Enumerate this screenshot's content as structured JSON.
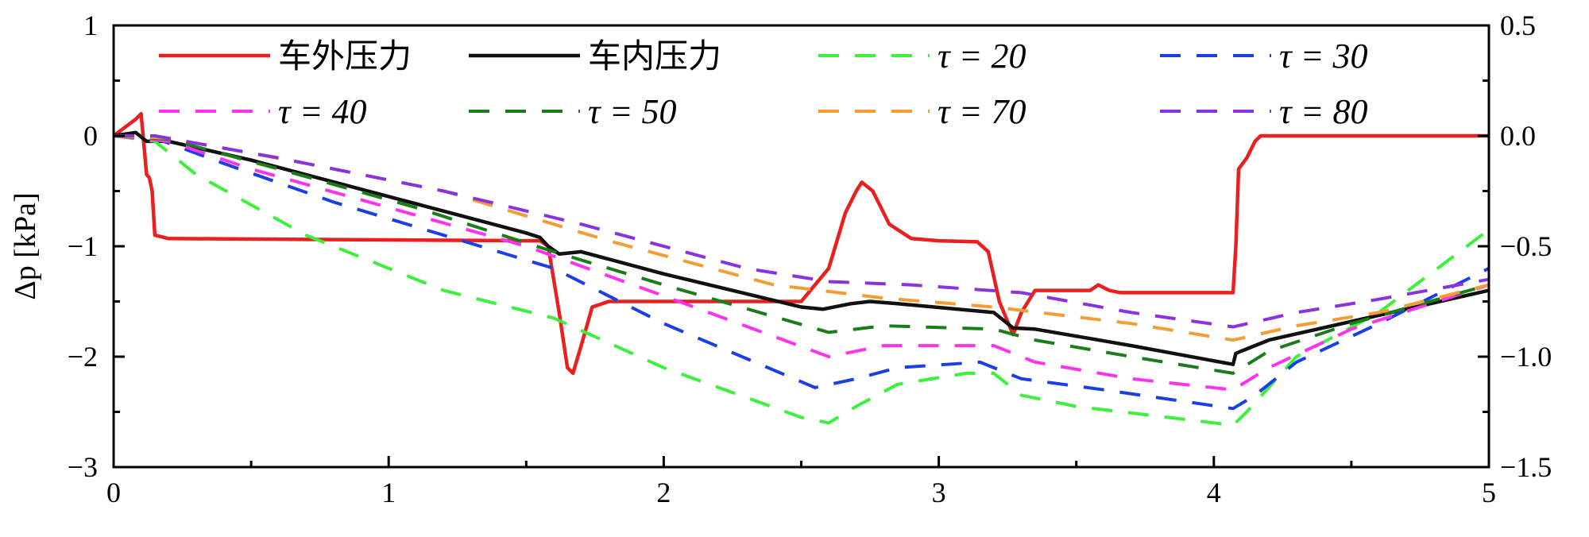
{
  "chart_data": {
    "type": "line",
    "title": "",
    "xlabel": "",
    "ylabel": "Δp [kPa]",
    "xlim": [
      0,
      5
    ],
    "ylim": [
      -3,
      1
    ],
    "y2lim": [
      -1.5,
      0.5
    ],
    "x_ticks": [
      "0",
      "1",
      "2",
      "3",
      "4",
      "5"
    ],
    "y_ticks": [
      "1",
      "0",
      "−1",
      "−2",
      "−3"
    ],
    "y2_ticks": [
      "0.5",
      "0.0",
      "−0.5",
      "−1.0",
      "−1.5"
    ],
    "grid": false,
    "legend_position": "top",
    "series": [
      {
        "name": "车外压力",
        "color": "#e8201f",
        "dash": "solid",
        "points": [
          [
            0,
            0
          ],
          [
            0.08,
            0.15
          ],
          [
            0.1,
            0.2
          ],
          [
            0.12,
            -0.35
          ],
          [
            0.13,
            -0.38
          ],
          [
            0.14,
            -0.5
          ],
          [
            0.15,
            -0.9
          ],
          [
            0.2,
            -0.93
          ],
          [
            1.5,
            -0.95
          ],
          [
            1.55,
            -0.95
          ],
          [
            1.58,
            -1.0
          ],
          [
            1.62,
            -1.6
          ],
          [
            1.65,
            -2.1
          ],
          [
            1.67,
            -2.15
          ],
          [
            1.7,
            -1.9
          ],
          [
            1.74,
            -1.55
          ],
          [
            1.8,
            -1.5
          ],
          [
            2.5,
            -1.5
          ],
          [
            2.6,
            -1.2
          ],
          [
            2.66,
            -0.7
          ],
          [
            2.7,
            -0.5
          ],
          [
            2.72,
            -0.42
          ],
          [
            2.76,
            -0.5
          ],
          [
            2.82,
            -0.8
          ],
          [
            2.9,
            -0.93
          ],
          [
            3.0,
            -0.95
          ],
          [
            3.14,
            -0.96
          ],
          [
            3.18,
            -1.05
          ],
          [
            3.22,
            -1.5
          ],
          [
            3.27,
            -1.8
          ],
          [
            3.3,
            -1.6
          ],
          [
            3.35,
            -1.4
          ],
          [
            3.55,
            -1.4
          ],
          [
            3.58,
            -1.35
          ],
          [
            3.62,
            -1.4
          ],
          [
            3.66,
            -1.42
          ],
          [
            4.07,
            -1.42
          ],
          [
            4.08,
            -1.0
          ],
          [
            4.09,
            -0.3
          ],
          [
            4.12,
            -0.2
          ],
          [
            4.15,
            -0.05
          ],
          [
            4.17,
            0
          ],
          [
            5,
            0
          ]
        ]
      },
      {
        "name": "车内压力",
        "color": "#111111",
        "dash": "solid",
        "points": [
          [
            0,
            0
          ],
          [
            0.08,
            0.03
          ],
          [
            0.12,
            -0.05
          ],
          [
            0.2,
            -0.05
          ],
          [
            0.5,
            -0.22
          ],
          [
            1.0,
            -0.55
          ],
          [
            1.5,
            -0.88
          ],
          [
            1.55,
            -0.92
          ],
          [
            1.58,
            -1.0
          ],
          [
            1.62,
            -1.07
          ],
          [
            1.7,
            -1.05
          ],
          [
            2.0,
            -1.25
          ],
          [
            2.5,
            -1.55
          ],
          [
            2.58,
            -1.57
          ],
          [
            2.68,
            -1.52
          ],
          [
            2.75,
            -1.5
          ],
          [
            2.85,
            -1.52
          ],
          [
            3.2,
            -1.6
          ],
          [
            3.27,
            -1.74
          ],
          [
            3.35,
            -1.75
          ],
          [
            3.7,
            -1.9
          ],
          [
            4.07,
            -2.07
          ],
          [
            4.08,
            -1.97
          ],
          [
            4.1,
            -1.95
          ],
          [
            4.2,
            -1.85
          ],
          [
            5,
            -1.4
          ]
        ]
      },
      {
        "name": "τ = 20",
        "color": "#3cf03c",
        "dash": "dashed",
        "points": [
          [
            0,
            0
          ],
          [
            0.15,
            -0.05
          ],
          [
            0.3,
            -0.35
          ],
          [
            0.7,
            -0.9
          ],
          [
            1.2,
            -1.4
          ],
          [
            1.6,
            -1.65
          ],
          [
            2.0,
            -2.1
          ],
          [
            2.5,
            -2.55
          ],
          [
            2.6,
            -2.6
          ],
          [
            2.7,
            -2.45
          ],
          [
            2.85,
            -2.25
          ],
          [
            3.1,
            -2.15
          ],
          [
            3.2,
            -2.15
          ],
          [
            3.3,
            -2.35
          ],
          [
            3.5,
            -2.45
          ],
          [
            4.0,
            -2.6
          ],
          [
            4.07,
            -2.62
          ],
          [
            4.12,
            -2.5
          ],
          [
            4.3,
            -2.0
          ],
          [
            4.6,
            -1.6
          ],
          [
            5,
            -0.85
          ]
        ]
      },
      {
        "name": "τ = 30",
        "color": "#1a3fe6",
        "dash": "dashed",
        "points": [
          [
            0,
            0
          ],
          [
            0.15,
            -0.02
          ],
          [
            0.4,
            -0.25
          ],
          [
            0.8,
            -0.6
          ],
          [
            1.2,
            -0.9
          ],
          [
            1.6,
            -1.2
          ],
          [
            2.0,
            -1.7
          ],
          [
            2.55,
            -2.28
          ],
          [
            2.7,
            -2.2
          ],
          [
            2.85,
            -2.1
          ],
          [
            3.15,
            -2.05
          ],
          [
            3.3,
            -2.2
          ],
          [
            3.6,
            -2.3
          ],
          [
            4.07,
            -2.47
          ],
          [
            4.15,
            -2.35
          ],
          [
            4.3,
            -2.05
          ],
          [
            4.6,
            -1.7
          ],
          [
            5,
            -1.2
          ]
        ]
      },
      {
        "name": "τ = 40",
        "color": "#ff33ee",
        "dash": "dashed",
        "points": [
          [
            0,
            0
          ],
          [
            0.2,
            -0.05
          ],
          [
            0.5,
            -0.3
          ],
          [
            1.0,
            -0.65
          ],
          [
            1.5,
            -1.0
          ],
          [
            2.0,
            -1.45
          ],
          [
            2.6,
            -2.0
          ],
          [
            2.8,
            -1.9
          ],
          [
            3.2,
            -1.9
          ],
          [
            3.35,
            -2.05
          ],
          [
            3.7,
            -2.2
          ],
          [
            4.07,
            -2.3
          ],
          [
            4.2,
            -2.1
          ],
          [
            4.5,
            -1.75
          ],
          [
            5,
            -1.35
          ]
        ]
      },
      {
        "name": "τ = 50",
        "color": "#1a7d1a",
        "dash": "dashed",
        "points": [
          [
            0,
            0
          ],
          [
            0.2,
            -0.03
          ],
          [
            0.6,
            -0.3
          ],
          [
            1.1,
            -0.65
          ],
          [
            1.6,
            -1.05
          ],
          [
            2.0,
            -1.35
          ],
          [
            2.6,
            -1.78
          ],
          [
            2.8,
            -1.72
          ],
          [
            3.2,
            -1.75
          ],
          [
            3.35,
            -1.85
          ],
          [
            3.7,
            -2.0
          ],
          [
            4.07,
            -2.15
          ],
          [
            4.2,
            -1.95
          ],
          [
            4.5,
            -1.7
          ],
          [
            5,
            -1.35
          ]
        ]
      },
      {
        "name": "τ = 70",
        "color": "#f59d35",
        "dash": "dashed",
        "points": [
          [
            0,
            0
          ],
          [
            0.2,
            -0.02
          ],
          [
            0.7,
            -0.25
          ],
          [
            1.2,
            -0.5
          ],
          [
            1.8,
            -0.95
          ],
          [
            2.4,
            -1.35
          ],
          [
            2.8,
            -1.47
          ],
          [
            3.2,
            -1.55
          ],
          [
            3.7,
            -1.7
          ],
          [
            4.07,
            -1.85
          ],
          [
            4.3,
            -1.72
          ],
          [
            4.6,
            -1.6
          ],
          [
            5,
            -1.35
          ]
        ]
      },
      {
        "name": "τ = 80",
        "color": "#8833dd",
        "dash": "dashed",
        "points": [
          [
            0,
            0
          ],
          [
            0.15,
            0
          ],
          [
            0.6,
            -0.2
          ],
          [
            1.2,
            -0.5
          ],
          [
            1.7,
            -0.8
          ],
          [
            2.3,
            -1.2
          ],
          [
            2.6,
            -1.32
          ],
          [
            2.9,
            -1.35
          ],
          [
            3.3,
            -1.42
          ],
          [
            3.7,
            -1.6
          ],
          [
            4.07,
            -1.73
          ],
          [
            4.3,
            -1.6
          ],
          [
            4.6,
            -1.48
          ],
          [
            5,
            -1.3
          ]
        ]
      }
    ]
  }
}
